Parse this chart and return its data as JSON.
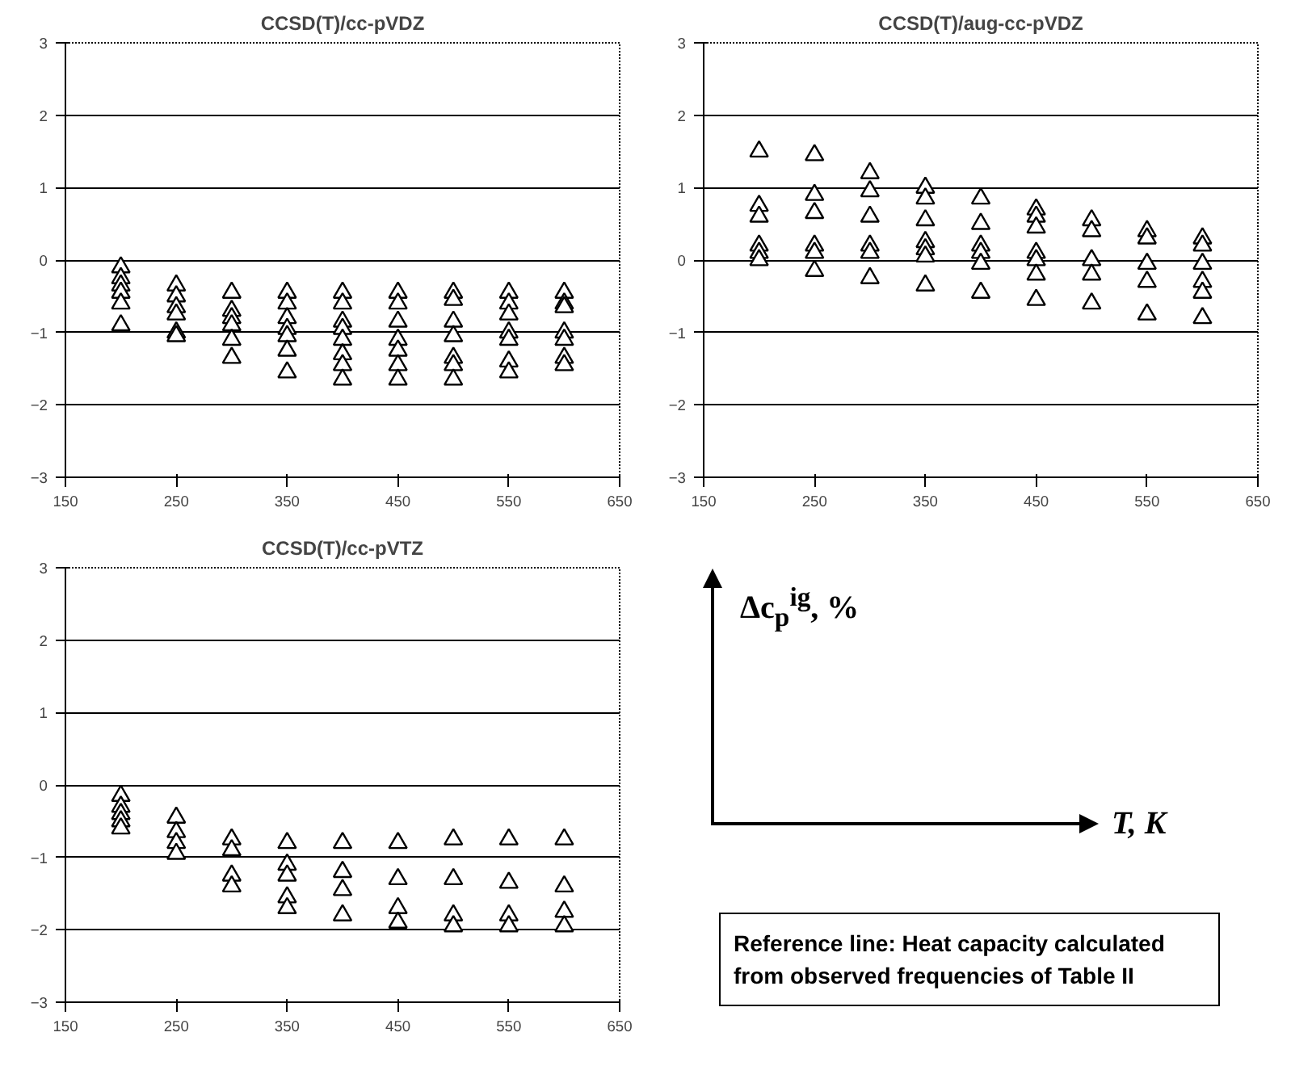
{
  "chart_data": [
    {
      "type": "scatter",
      "title": "CCSD(T)/cc-pVDZ",
      "marker": "triangle",
      "grid": "y",
      "xlim": [
        150,
        650
      ],
      "ylim": [
        -3,
        3
      ],
      "xticks": [
        150,
        250,
        350,
        450,
        550,
        650
      ],
      "yticks": [
        -3,
        -2,
        -1,
        0,
        1,
        2,
        3
      ],
      "series": [
        {
          "color": "#000000",
          "x": [
            200,
            200,
            200,
            200,
            200,
            200,
            250,
            250,
            250,
            250,
            250,
            250,
            300,
            300,
            300,
            300,
            300,
            300,
            350,
            350,
            350,
            350,
            350,
            350,
            350,
            400,
            400,
            400,
            400,
            400,
            400,
            400,
            400,
            450,
            450,
            450,
            450,
            450,
            450,
            450,
            500,
            500,
            500,
            500,
            500,
            500,
            500,
            550,
            550,
            550,
            550,
            550,
            550,
            550,
            600,
            600,
            600,
            600,
            600,
            600,
            600
          ],
          "values": [
            -0.1,
            -0.25,
            -0.35,
            -0.45,
            -0.6,
            -0.9,
            -0.35,
            -0.5,
            -0.65,
            -0.75,
            -1.0,
            -1.05,
            -0.45,
            -0.7,
            -0.8,
            -0.9,
            -1.1,
            -1.35,
            -0.45,
            -0.6,
            -0.8,
            -0.95,
            -1.05,
            -1.25,
            -1.55,
            -0.45,
            -0.6,
            -0.85,
            -0.95,
            -1.1,
            -1.3,
            -1.45,
            -1.65,
            -0.45,
            -0.6,
            -0.85,
            -1.1,
            -1.25,
            -1.45,
            -1.65,
            -0.45,
            -0.55,
            -0.85,
            -1.05,
            -1.35,
            -1.45,
            -1.65,
            -0.45,
            -0.6,
            -0.75,
            -1.0,
            -1.1,
            -1.4,
            -1.55,
            -0.45,
            -0.6,
            -0.65,
            -1.0,
            -1.1,
            -1.35,
            -1.45
          ]
        }
      ]
    },
    {
      "type": "scatter",
      "title": "CCSD(T)/aug-cc-pVDZ",
      "marker": "triangle",
      "grid": "y",
      "xlim": [
        150,
        650
      ],
      "ylim": [
        -3,
        3
      ],
      "xticks": [
        150,
        250,
        350,
        450,
        550,
        650
      ],
      "yticks": [
        -3,
        -2,
        -1,
        0,
        1,
        2,
        3
      ],
      "series": [
        {
          "color": "#000000",
          "x": [
            200,
            200,
            200,
            200,
            200,
            200,
            250,
            250,
            250,
            250,
            250,
            250,
            300,
            300,
            300,
            300,
            300,
            300,
            350,
            350,
            350,
            350,
            350,
            350,
            350,
            400,
            400,
            400,
            400,
            400,
            400,
            450,
            450,
            450,
            450,
            450,
            450,
            450,
            500,
            500,
            500,
            500,
            500,
            550,
            550,
            550,
            550,
            550,
            600,
            600,
            600,
            600,
            600,
            600
          ],
          "values": [
            1.5,
            0.75,
            0.6,
            0.2,
            0.1,
            0.0,
            1.45,
            0.9,
            0.65,
            0.2,
            0.1,
            -0.15,
            1.2,
            0.95,
            0.6,
            0.2,
            0.1,
            -0.25,
            1.0,
            0.85,
            0.55,
            0.25,
            0.15,
            0.05,
            -0.35,
            0.85,
            0.5,
            0.2,
            0.1,
            -0.05,
            -0.45,
            0.7,
            0.6,
            0.45,
            0.1,
            0.0,
            -0.2,
            -0.55,
            0.55,
            0.4,
            0.0,
            -0.2,
            -0.6,
            0.4,
            0.3,
            -0.05,
            -0.3,
            -0.75,
            0.3,
            0.2,
            -0.05,
            -0.3,
            -0.45,
            -0.8
          ]
        }
      ]
    },
    {
      "type": "scatter",
      "title": "CCSD(T)/cc-pVTZ",
      "marker": "triangle",
      "grid": "y",
      "xlim": [
        150,
        650
      ],
      "ylim": [
        -3,
        3
      ],
      "xticks": [
        150,
        250,
        350,
        450,
        550,
        650
      ],
      "yticks": [
        -3,
        -2,
        -1,
        0,
        1,
        2,
        3
      ],
      "series": [
        {
          "color": "#000000",
          "x": [
            200,
            200,
            200,
            200,
            200,
            250,
            250,
            250,
            250,
            300,
            300,
            300,
            300,
            350,
            350,
            350,
            350,
            350,
            400,
            400,
            400,
            400,
            450,
            450,
            450,
            450,
            500,
            500,
            500,
            500,
            550,
            550,
            550,
            550,
            600,
            600,
            600,
            600
          ],
          "values": [
            -0.15,
            -0.3,
            -0.4,
            -0.5,
            -0.6,
            -0.45,
            -0.65,
            -0.8,
            -0.95,
            -0.75,
            -0.9,
            -1.25,
            -1.4,
            -0.8,
            -1.1,
            -1.25,
            -1.55,
            -1.7,
            -0.8,
            -1.2,
            -1.45,
            -1.8,
            -0.8,
            -1.3,
            -1.7,
            -1.9,
            -0.75,
            -1.3,
            -1.8,
            -1.95,
            -0.75,
            -1.35,
            -1.8,
            -1.95,
            -0.75,
            -1.4,
            -1.75,
            -1.95
          ]
        }
      ]
    },
    {
      "type": "other",
      "ylabel": "Δc$_{p}$$^{ig}$, %",
      "xlabel": "T, K",
      "annotations": [
        "Reference line: Heat capacity calculated  from observed frequencies of Table II"
      ]
    }
  ]
}
